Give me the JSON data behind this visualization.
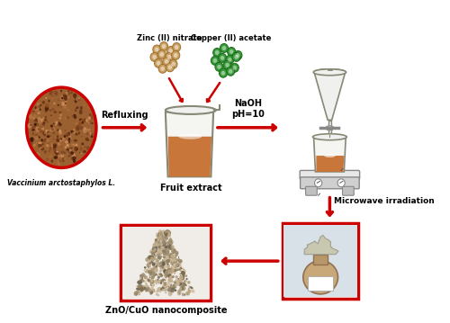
{
  "background_color": "#ffffff",
  "labels": {
    "vaccinium": "Vaccinium arctostaphylos L.",
    "refluxing": "Refluxing",
    "fruit_extract": "Fruit extract",
    "naoh": "NaOH\npH=10",
    "zinc_nitrate": "Zinc (II) nitrate",
    "copper_acetate": "Copper (II) acetate",
    "microwave": "Microwave irradiation",
    "product": "ZnO/CuO nanocomposite"
  },
  "arrow_color": "#cc0000",
  "border_color": "#cc0000",
  "zinc_dot_color": "#c8a060",
  "copper_dot_color": "#3a9a3a",
  "beaker_liquid_color": "#c8763a",
  "scale_color": "#d8d8d8",
  "beaker_body_color": "#f0f0ee",
  "beaker_edge_color": "#888877"
}
